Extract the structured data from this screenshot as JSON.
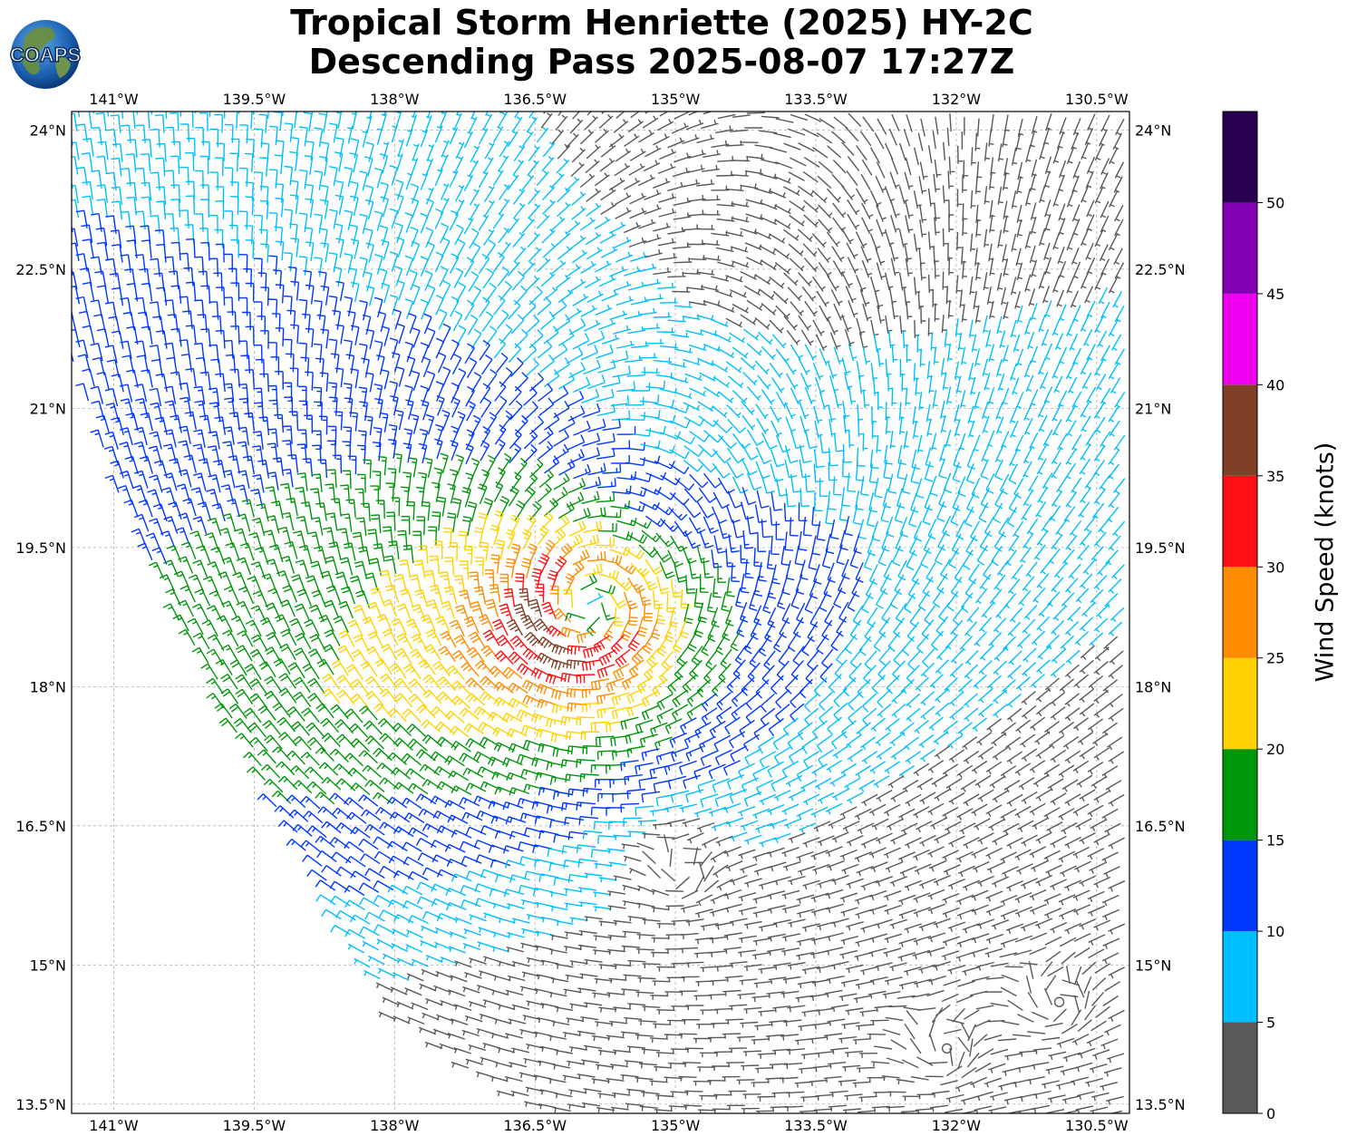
{
  "title": {
    "line1": "Tropical Storm Henriette (2025) HY-2C",
    "line2": "Descending Pass 2025-08-07 17:27Z"
  },
  "logo": {
    "text": "COAPS",
    "icon": "globe-icon"
  },
  "map": {
    "extent": {
      "lon_min": -141.45,
      "lon_max": -130.15,
      "lat_min": 13.4,
      "lat_max": 24.2
    },
    "lon_ticks": [
      {
        "value": -141.0,
        "label": "141°W"
      },
      {
        "value": -139.5,
        "label": "139.5°W"
      },
      {
        "value": -138.0,
        "label": "138°W"
      },
      {
        "value": -136.5,
        "label": "136.5°W"
      },
      {
        "value": -135.0,
        "label": "135°W"
      },
      {
        "value": -133.5,
        "label": "133.5°W"
      },
      {
        "value": -132.0,
        "label": "132°W"
      },
      {
        "value": -130.5,
        "label": "130.5°W"
      }
    ],
    "lat_ticks": [
      {
        "value": 24.0,
        "label": "24°N"
      },
      {
        "value": 22.5,
        "label": "22.5°N"
      },
      {
        "value": 21.0,
        "label": "21°N"
      },
      {
        "value": 19.5,
        "label": "19.5°N"
      },
      {
        "value": 18.0,
        "label": "18°N"
      },
      {
        "value": 16.5,
        "label": "16.5°N"
      },
      {
        "value": 15.0,
        "label": "15°N"
      },
      {
        "value": 13.5,
        "label": "13.5°N"
      }
    ],
    "grid": true,
    "storm_center": {
      "lon": -135.95,
      "lat": 18.8
    },
    "secondary_circulations": [
      {
        "lon": -134.9,
        "lat": 16.0
      },
      {
        "lon": -132.1,
        "lat": 14.1
      },
      {
        "lon": -130.9,
        "lat": 14.6
      }
    ],
    "swath_polygon": [
      [
        -141.45,
        24.2
      ],
      [
        -130.15,
        24.2
      ],
      [
        -130.15,
        13.4
      ],
      [
        -136.5,
        13.4
      ],
      [
        -138.0,
        14.4
      ],
      [
        -139.1,
        16.4
      ],
      [
        -140.2,
        18.4
      ],
      [
        -141.0,
        20.2
      ],
      [
        -141.45,
        21.5
      ]
    ],
    "barb_spacing_deg": 0.155
  },
  "colorbar": {
    "label": "Wind Speed (knots)",
    "bins": [
      {
        "min": 0,
        "max": 5,
        "color": "#595959"
      },
      {
        "min": 5,
        "max": 10,
        "color": "#00bfff"
      },
      {
        "min": 10,
        "max": 15,
        "color": "#0038ff"
      },
      {
        "min": 15,
        "max": 20,
        "color": "#00960a"
      },
      {
        "min": 20,
        "max": 25,
        "color": "#ffd200"
      },
      {
        "min": 25,
        "max": 30,
        "color": "#ff8c00"
      },
      {
        "min": 30,
        "max": 35,
        "color": "#ff0f12"
      },
      {
        "min": 35,
        "max": 40,
        "color": "#803f27"
      },
      {
        "min": 40,
        "max": 45,
        "color": "#f000f0"
      },
      {
        "min": 45,
        "max": 50,
        "color": "#8200b4"
      },
      {
        "min": 50,
        "max": 55,
        "color": "#280050"
      }
    ],
    "tick_labels": [
      "0",
      "5",
      "10",
      "15",
      "20",
      "25",
      "30",
      "35",
      "40",
      "45",
      "50"
    ]
  }
}
